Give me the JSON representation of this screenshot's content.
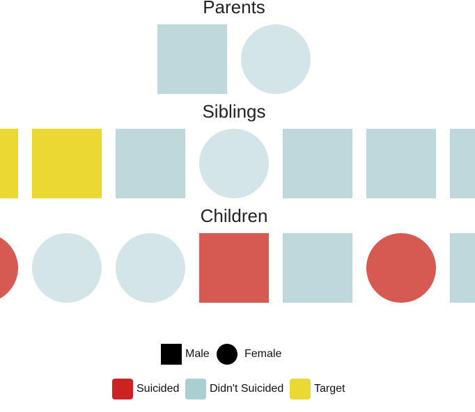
{
  "colors": {
    "suicided": "#d65a52",
    "didnt_suicided": "#bed8db",
    "didnt_suicided_female": "#d3e5e8",
    "target": "#ebd833",
    "legend_suicided": "#cc2222",
    "legend_didnt_suicided": "#aacfd3",
    "legend_target": "#ebd833",
    "legend_gender": "#000000"
  },
  "sections": [
    {
      "title": "Parents",
      "members": [
        {
          "sex": "male",
          "status": "didnt_suicided"
        },
        {
          "sex": "female",
          "status": "didnt_suicided"
        }
      ]
    },
    {
      "title": "Siblings",
      "members": [
        {
          "sex": "male",
          "status": "target"
        },
        {
          "sex": "male",
          "status": "target"
        },
        {
          "sex": "male",
          "status": "didnt_suicided"
        },
        {
          "sex": "female",
          "status": "didnt_suicided"
        },
        {
          "sex": "male",
          "status": "didnt_suicided"
        },
        {
          "sex": "male",
          "status": "didnt_suicided"
        },
        {
          "sex": "male",
          "status": "didnt_suicided"
        }
      ]
    },
    {
      "title": "Children",
      "members": [
        {
          "sex": "female",
          "status": "suicided"
        },
        {
          "sex": "female",
          "status": "didnt_suicided"
        },
        {
          "sex": "female",
          "status": "didnt_suicided"
        },
        {
          "sex": "male",
          "status": "suicided"
        },
        {
          "sex": "male",
          "status": "didnt_suicided"
        },
        {
          "sex": "female",
          "status": "suicided"
        },
        {
          "sex": "male",
          "status": "didnt_suicided"
        }
      ]
    }
  ],
  "legend": {
    "gender": [
      {
        "key": "male",
        "label": "Male"
      },
      {
        "key": "female",
        "label": "Female"
      }
    ],
    "status": [
      {
        "key": "suicided",
        "label": "Suicided"
      },
      {
        "key": "didnt_suicided",
        "label": "Didn't Suicided"
      },
      {
        "key": "target",
        "label": "Target"
      }
    ]
  }
}
